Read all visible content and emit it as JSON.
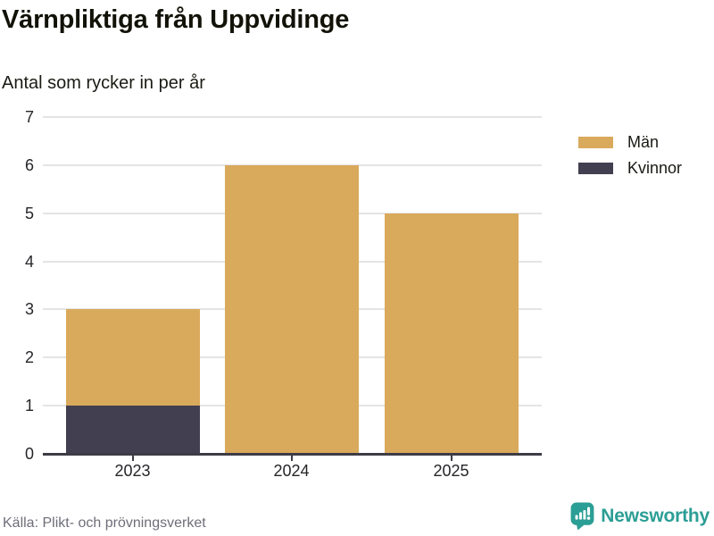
{
  "chart_data": {
    "type": "bar",
    "stacked": true,
    "title": "Värnpliktiga från Uppvidinge",
    "subtitle": "Antal som rycker in per år",
    "categories": [
      "2023",
      "2024",
      "2025"
    ],
    "series": [
      {
        "name": "Män",
        "color": "#d9aa5b",
        "values": [
          2,
          6,
          5
        ]
      },
      {
        "name": "Kvinnor",
        "color": "#423f50",
        "values": [
          1,
          0,
          0
        ]
      }
    ],
    "totals": [
      3,
      6,
      5
    ],
    "xlabel": "",
    "ylabel": "",
    "ylim": [
      0,
      7
    ],
    "yticks": [
      0,
      1,
      2,
      3,
      4,
      5,
      6,
      7
    ],
    "grid": true,
    "legend_position": "right"
  },
  "footer": {
    "source": "Källa: Plikt- och prövningsverket",
    "brand": "Newsworthy"
  },
  "colors": {
    "men": "#d9aa5b",
    "women": "#423f50",
    "gridline": "#e4e4e4",
    "axis": "#3d3c46",
    "brand_teal": "#2b9e95",
    "source_text": "#6e6e79"
  },
  "icons": {
    "logo": "newsworthy-speech-bubble-bar-chart-icon"
  }
}
